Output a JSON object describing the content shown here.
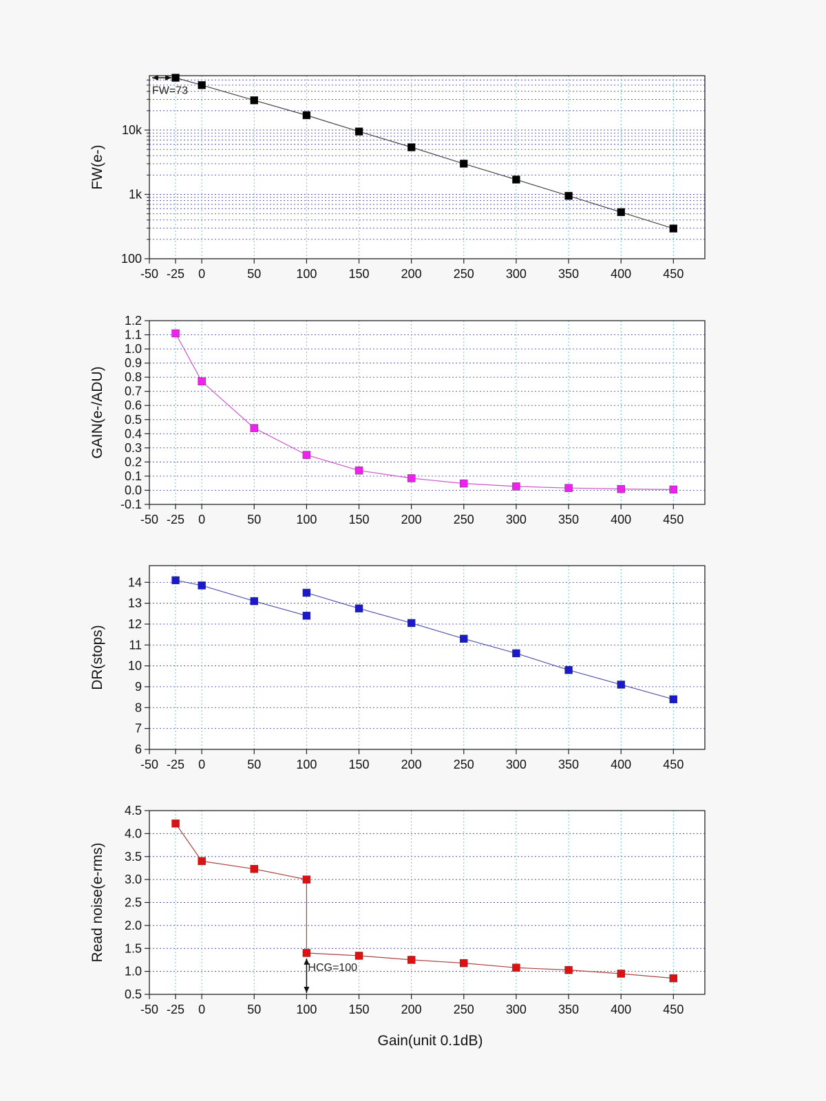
{
  "chart_data": [
    {
      "type": "line",
      "ylabel": "FW(e-)",
      "yscale": "log",
      "ylim": [
        100,
        70000
      ],
      "yticks": [
        {
          "v": 100,
          "label": "100"
        },
        {
          "v": 1000,
          "label": "1k"
        },
        {
          "v": 10000,
          "label": "10k"
        }
      ],
      "xlim": [
        -50,
        480
      ],
      "xticks": [
        -50,
        -25,
        0,
        50,
        100,
        150,
        200,
        250,
        300,
        350,
        400,
        450
      ],
      "grid": true,
      "series": [
        {
          "color": "#000000",
          "line_color": "#444444",
          "points": [
            [
              -25,
              65000
            ],
            [
              0,
              50000
            ],
            [
              50,
              29000
            ],
            [
              100,
              17000
            ],
            [
              150,
              9500
            ],
            [
              200,
              5400
            ],
            [
              250,
              3000
            ],
            [
              300,
              1700
            ],
            [
              350,
              950
            ],
            [
              400,
              530
            ],
            [
              450,
              295
            ]
          ],
          "segments": [
            [
              0,
              10
            ]
          ]
        }
      ],
      "annotations": [
        {
          "text": "FW=73",
          "x": -25,
          "y": 48000,
          "type": "double-arrow"
        }
      ]
    },
    {
      "type": "line",
      "ylabel": "GAIN(e-/ADU)",
      "ylim": [
        -0.1,
        1.2
      ],
      "yticks": [
        {
          "v": -0.1,
          "label": "-0.1"
        },
        {
          "v": 0.0,
          "label": "0.0"
        },
        {
          "v": 0.1,
          "label": "0.1"
        },
        {
          "v": 0.2,
          "label": "0.2"
        },
        {
          "v": 0.3,
          "label": "0.3"
        },
        {
          "v": 0.4,
          "label": "0.4"
        },
        {
          "v": 0.5,
          "label": "0.5"
        },
        {
          "v": 0.6,
          "label": "0.6"
        },
        {
          "v": 0.7,
          "label": "0.7"
        },
        {
          "v": 0.8,
          "label": "0.8"
        },
        {
          "v": 0.9,
          "label": "0.9"
        },
        {
          "v": 1.0,
          "label": "1.0"
        },
        {
          "v": 1.1,
          "label": "1.1"
        },
        {
          "v": 1.2,
          "label": "1.2"
        }
      ],
      "xlim": [
        -50,
        480
      ],
      "xticks": [
        -50,
        -25,
        0,
        50,
        100,
        150,
        200,
        250,
        300,
        350,
        400,
        450
      ],
      "grid": true,
      "series": [
        {
          "color": "#ee22ee",
          "line_color": "#cc55cc",
          "points": [
            [
              -25,
              1.11
            ],
            [
              0,
              0.77
            ],
            [
              50,
              0.44
            ],
            [
              100,
              0.25
            ],
            [
              150,
              0.14
            ],
            [
              200,
              0.085
            ],
            [
              250,
              0.048
            ],
            [
              300,
              0.027
            ],
            [
              350,
              0.016
            ],
            [
              400,
              0.009
            ],
            [
              450,
              0.005
            ]
          ],
          "segments": [
            [
              0,
              10
            ]
          ]
        }
      ],
      "annotations": []
    },
    {
      "type": "line",
      "ylabel": "DR(stops)",
      "ylim": [
        6,
        14.8
      ],
      "yticks": [
        {
          "v": 6,
          "label": "6"
        },
        {
          "v": 7,
          "label": "7"
        },
        {
          "v": 8,
          "label": "8"
        },
        {
          "v": 9,
          "label": "9"
        },
        {
          "v": 10,
          "label": "10"
        },
        {
          "v": 11,
          "label": "11"
        },
        {
          "v": 12,
          "label": "12"
        },
        {
          "v": 13,
          "label": "13"
        },
        {
          "v": 14,
          "label": "14"
        }
      ],
      "xlim": [
        -50,
        480
      ],
      "xticks": [
        -50,
        -25,
        0,
        50,
        100,
        150,
        200,
        250,
        300,
        350,
        400,
        450
      ],
      "grid": true,
      "series": [
        {
          "color": "#1a1acc",
          "line_color": "#5555aa",
          "points": [
            [
              -25,
              14.1
            ],
            [
              0,
              13.85
            ],
            [
              50,
              13.1
            ],
            [
              100,
              12.4
            ],
            [
              100,
              13.5
            ],
            [
              150,
              12.75
            ],
            [
              200,
              12.05
            ],
            [
              250,
              11.3
            ],
            [
              300,
              10.6
            ],
            [
              350,
              9.8
            ],
            [
              400,
              9.1
            ],
            [
              450,
              8.4
            ]
          ],
          "segments": [
            [
              0,
              3
            ],
            [
              4,
              11
            ]
          ]
        }
      ],
      "annotations": []
    },
    {
      "type": "line",
      "ylabel": "Read noise(e-rms)",
      "xlabel": "Gain(unit 0.1dB)",
      "ylim": [
        0.5,
        4.5
      ],
      "yticks": [
        {
          "v": 0.5,
          "label": "0.5"
        },
        {
          "v": 1.0,
          "label": "1.0"
        },
        {
          "v": 1.5,
          "label": "1.5"
        },
        {
          "v": 2.0,
          "label": "2.0"
        },
        {
          "v": 2.5,
          "label": "2.5"
        },
        {
          "v": 3.0,
          "label": "3.0"
        },
        {
          "v": 3.5,
          "label": "3.5"
        },
        {
          "v": 4.0,
          "label": "4.0"
        },
        {
          "v": 4.5,
          "label": "4.5"
        }
      ],
      "xlim": [
        -50,
        480
      ],
      "xticks": [
        -50,
        -25,
        0,
        50,
        100,
        150,
        200,
        250,
        300,
        350,
        400,
        450
      ],
      "grid": true,
      "series": [
        {
          "color": "#dd1111",
          "line_color": "#aa4444",
          "points": [
            [
              -25,
              4.22
            ],
            [
              0,
              3.4
            ],
            [
              50,
              3.23
            ],
            [
              100,
              3.0
            ],
            [
              100,
              1.4
            ],
            [
              150,
              1.34
            ],
            [
              200,
              1.25
            ],
            [
              250,
              1.18
            ],
            [
              300,
              1.08
            ],
            [
              350,
              1.03
            ],
            [
              400,
              0.95
            ],
            [
              450,
              0.85
            ]
          ],
          "segments": [
            [
              0,
              11
            ]
          ]
        }
      ],
      "annotations": [
        {
          "text": "HCG=100",
          "x": 100,
          "y": 1.1,
          "type": "vertical-double-arrow"
        }
      ]
    }
  ]
}
